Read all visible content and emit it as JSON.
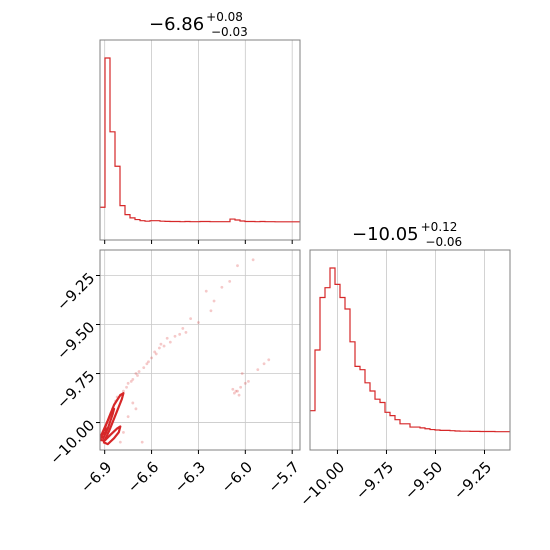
{
  "chart_data": [
    {
      "panel": "top-left",
      "type": "histogram",
      "title": {
        "value": "−6.86",
        "plus": "+0.08",
        "minus": "−0.03"
      },
      "xlim": [
        -6.93,
        -5.65
      ],
      "x_ticks": [
        -6.9,
        -6.6,
        -6.3,
        -6.0,
        -5.7
      ],
      "grid": true,
      "color": "#d62728",
      "bins": {
        "x_start": -6.93,
        "x_end": -5.65,
        "counts": [
          0.09,
          1.0,
          0.55,
          0.34,
          0.1,
          0.045,
          0.025,
          0.015,
          0.008,
          0.005,
          0.008,
          0.008,
          0.005,
          0.004,
          0.003,
          0.003,
          0.002,
          0.003,
          0.002,
          0.002,
          0.003,
          0.003,
          0.002,
          0.002,
          0.002,
          0.002,
          0.018,
          0.012,
          0.006,
          0.003,
          0.003,
          0.002,
          0.003,
          0.002,
          0.002,
          0.001,
          0.001,
          0.001,
          0.001,
          0.001
        ]
      }
    },
    {
      "panel": "bottom-right",
      "type": "histogram",
      "title": {
        "value": "−10.05",
        "plus": "+0.12",
        "minus": "−0.06"
      },
      "xlim": [
        -10.14,
        -9.12
      ],
      "x_ticks": [
        -10.0,
        -9.75,
        -9.5,
        -9.25
      ],
      "x_tick_labels": [
        "−10.00",
        "−9.75",
        "−9.50",
        "−9.25"
      ],
      "grid": true,
      "color": "#d62728",
      "bins": {
        "x_start": -10.14,
        "x_end": -9.12,
        "counts": [
          0.13,
          0.5,
          0.82,
          0.88,
          1.0,
          0.9,
          0.82,
          0.75,
          0.55,
          0.4,
          0.38,
          0.3,
          0.25,
          0.2,
          0.18,
          0.12,
          0.1,
          0.075,
          0.05,
          0.05,
          0.03,
          0.03,
          0.025,
          0.02,
          0.015,
          0.012,
          0.01,
          0.01,
          0.008,
          0.006,
          0.005,
          0.005,
          0.004,
          0.004,
          0.003,
          0.003,
          0.003,
          0.002,
          0.002,
          0.002
        ]
      }
    },
    {
      "panel": "bottom-left",
      "type": "scatter",
      "xlim": [
        -6.93,
        -5.65
      ],
      "ylim": [
        -10.14,
        -9.12
      ],
      "x_ticks": [
        -6.9,
        -6.6,
        -6.3,
        -6.0,
        -5.7
      ],
      "x_tick_labels": [
        "−6.9",
        "−6.6",
        "−6.3",
        "−6.0",
        "−5.7"
      ],
      "y_ticks": [
        -10.0,
        -9.75,
        -9.5,
        -9.25
      ],
      "y_tick_labels": [
        "−10.00",
        "−9.75",
        "−9.50",
        "−9.25"
      ],
      "grid": true,
      "color": "#d62728",
      "points": [
        [
          -6.05,
          -9.2
        ],
        [
          -6.1,
          -9.28
        ],
        [
          -6.2,
          -9.38
        ],
        [
          -6.25,
          -9.33
        ],
        [
          -6.35,
          -9.47
        ],
        [
          -6.4,
          -9.52
        ],
        [
          -6.45,
          -9.56
        ],
        [
          -6.5,
          -9.57
        ],
        [
          -6.55,
          -9.62
        ],
        [
          -6.58,
          -9.64
        ],
        [
          -6.6,
          -9.67
        ],
        [
          -6.62,
          -9.69
        ],
        [
          -6.65,
          -9.72
        ],
        [
          -6.68,
          -9.74
        ],
        [
          -6.7,
          -9.75
        ],
        [
          -6.72,
          -9.78
        ],
        [
          -6.75,
          -9.8
        ],
        [
          -6.78,
          -9.84
        ],
        [
          -6.8,
          -9.86
        ],
        [
          -6.83,
          -9.89
        ],
        [
          -6.3,
          -9.49
        ],
        [
          -6.38,
          -9.54
        ],
        [
          -6.48,
          -9.59
        ],
        [
          -6.52,
          -9.61
        ],
        [
          -6.57,
          -9.65
        ],
        [
          -6.63,
          -9.7
        ],
        [
          -6.69,
          -9.76
        ],
        [
          -6.73,
          -9.79
        ],
        [
          -6.76,
          -9.82
        ],
        [
          -6.82,
          -9.87
        ],
        [
          -6.08,
          -9.83
        ],
        [
          -6.05,
          -9.84
        ],
        [
          -6.03,
          -9.82
        ],
        [
          -5.98,
          -9.79
        ],
        [
          -5.92,
          -9.73
        ],
        [
          -5.85,
          -9.68
        ],
        [
          -6.02,
          -9.75
        ],
        [
          -6.0,
          -9.8
        ],
        [
          -6.07,
          -9.85
        ],
        [
          -6.04,
          -9.86
        ],
        [
          -6.06,
          -9.84
        ],
        [
          -5.88,
          -9.7
        ],
        [
          -6.22,
          -9.43
        ],
        [
          -6.15,
          -9.31
        ],
        [
          -5.95,
          -9.17
        ],
        [
          -6.7,
          -9.93
        ],
        [
          -6.75,
          -9.97
        ],
        [
          -6.78,
          -10.05
        ],
        [
          -6.8,
          -10.1
        ],
        [
          -6.66,
          -10.1
        ],
        [
          -6.72,
          -9.9
        ],
        [
          -6.85,
          -9.93
        ],
        [
          -6.42,
          -9.55
        ],
        [
          -6.54,
          -9.6
        ]
      ],
      "contours": [
        [
          [
            -6.925,
            -10.07
          ],
          [
            -6.88,
            -9.99
          ],
          [
            -6.84,
            -9.91
          ],
          [
            -6.8,
            -9.86
          ],
          [
            -6.78,
            -9.85
          ],
          [
            -6.79,
            -9.88
          ],
          [
            -6.83,
            -9.96
          ],
          [
            -6.87,
            -10.04
          ],
          [
            -6.9,
            -10.09
          ],
          [
            -6.925,
            -10.09
          ],
          [
            -6.925,
            -10.07
          ]
        ],
        [
          [
            -6.92,
            -10.07
          ],
          [
            -6.89,
            -10.01
          ],
          [
            -6.86,
            -9.95
          ],
          [
            -6.84,
            -9.93
          ],
          [
            -6.85,
            -9.96
          ],
          [
            -6.88,
            -10.03
          ],
          [
            -6.91,
            -10.08
          ],
          [
            -6.92,
            -10.07
          ]
        ],
        [
          [
            -6.915,
            -10.06
          ],
          [
            -6.895,
            -10.02
          ],
          [
            -6.89,
            -10.05
          ],
          [
            -6.915,
            -10.06
          ]
        ],
        [
          [
            -6.91,
            -10.1
          ],
          [
            -6.86,
            -10.06
          ],
          [
            -6.82,
            -10.03
          ],
          [
            -6.8,
            -10.02
          ],
          [
            -6.81,
            -10.05
          ],
          [
            -6.84,
            -10.08
          ],
          [
            -6.88,
            -10.11
          ],
          [
            -6.91,
            -10.1
          ]
        ]
      ]
    }
  ]
}
